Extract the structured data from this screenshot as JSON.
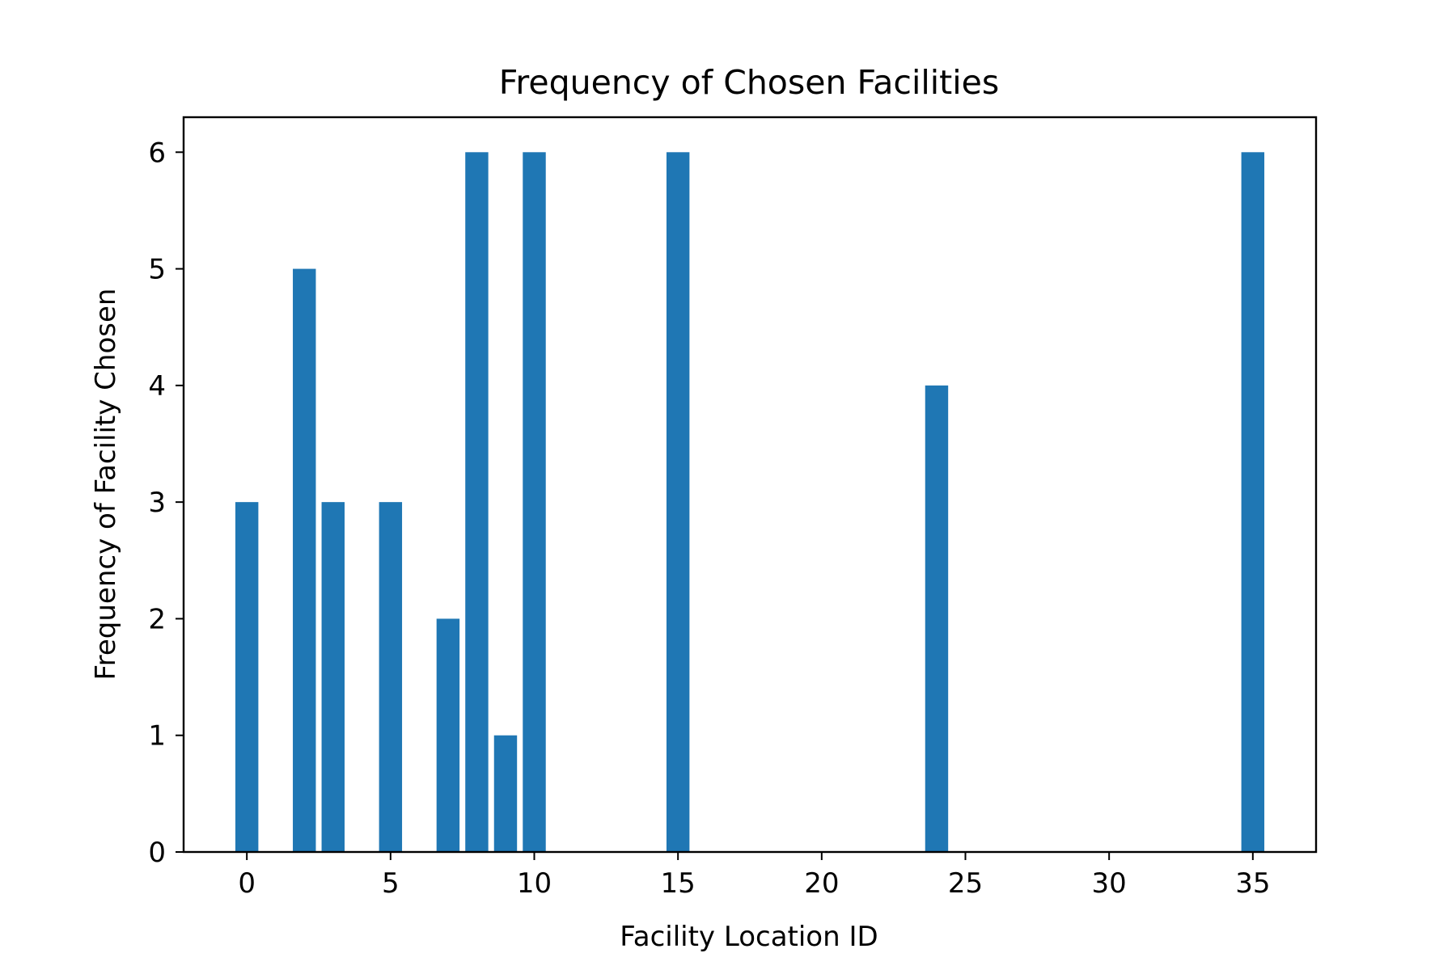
{
  "chart_data": {
    "type": "bar",
    "title": "Frequency of Chosen Facilities",
    "xlabel": "Facility Location ID",
    "ylabel": "Frequency of Facility Chosen",
    "x": [
      0,
      2,
      3,
      5,
      7,
      8,
      9,
      10,
      15,
      24,
      35
    ],
    "values": [
      3,
      5,
      3,
      3,
      2,
      6,
      1,
      6,
      6,
      4,
      6
    ],
    "bar_width": 0.8,
    "xlim": [
      -2.2,
      37.2
    ],
    "ylim": [
      0,
      6.3
    ],
    "xticks": [
      0,
      5,
      10,
      15,
      20,
      25,
      30,
      35
    ],
    "yticks": [
      0,
      1,
      2,
      3,
      4,
      5,
      6
    ],
    "bar_color": "#1f77b4",
    "grid": false,
    "legend": "none"
  }
}
